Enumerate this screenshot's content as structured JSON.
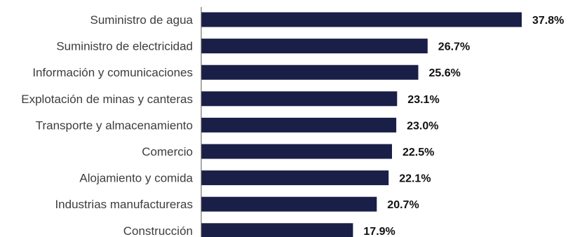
{
  "chart_data": {
    "type": "bar",
    "orientation": "horizontal",
    "title": "",
    "xlabel": "",
    "ylabel": "",
    "categories": [
      "Suministro de agua",
      "Suministro de electricidad",
      "Información y comunicaciones",
      "Explotación de minas y canteras",
      "Transporte y almacenamiento",
      "Comercio",
      "Alojamiento y comida",
      "Industrias manufactureras",
      "Construcción"
    ],
    "values": [
      37.8,
      26.7,
      25.6,
      23.1,
      23.0,
      22.5,
      22.1,
      20.7,
      17.9
    ],
    "value_labels": [
      "37.8%",
      "26.7%",
      "25.6%",
      "23.1%",
      "23.0%",
      "22.5%",
      "22.1%",
      "20.7%",
      "17.9%"
    ],
    "xlim": [
      0,
      37.8
    ],
    "grid": false,
    "legend": "none",
    "bar_color": "#1a1f48",
    "axis_color": "#555555",
    "label_color": "#3d3d3d",
    "value_color": "#111111"
  }
}
